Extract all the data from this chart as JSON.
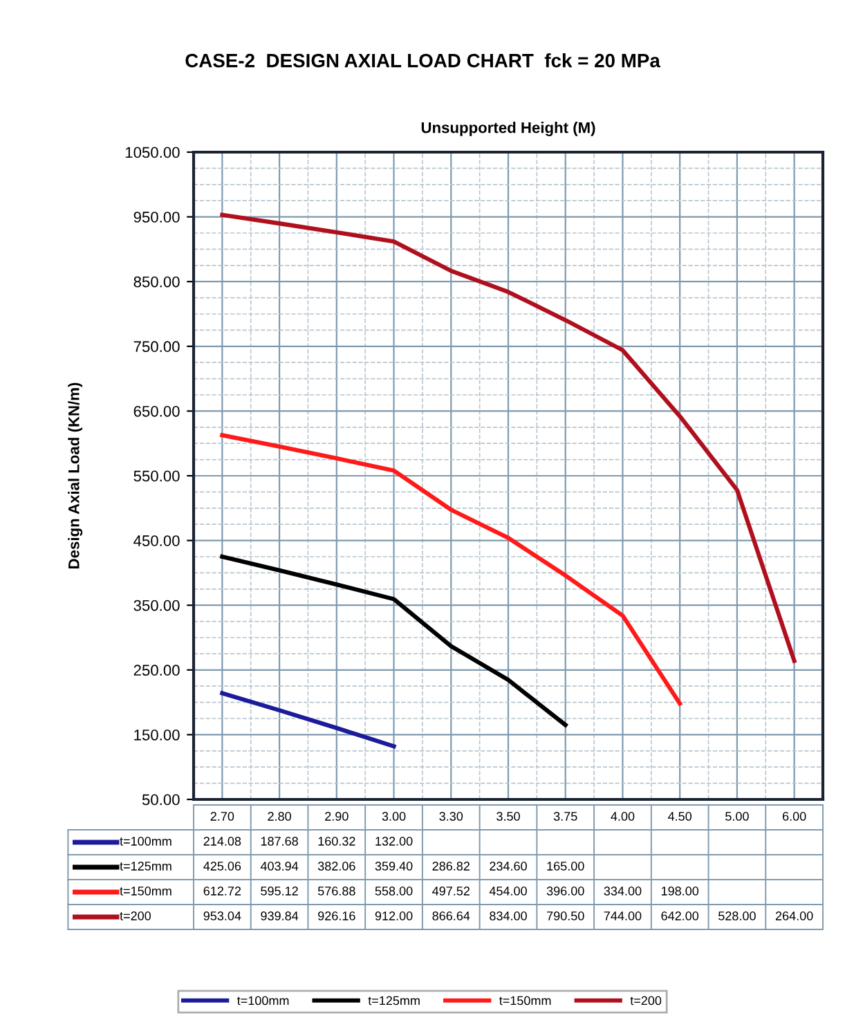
{
  "chart_data": {
    "type": "line",
    "title": "CASE-2  DESIGN AXIAL LOAD CHART  fck = 20 MPa",
    "xlabel": "Unsupported Height (M)",
    "ylabel": "Design Axial Load (KN/m)",
    "categories": [
      "2.70",
      "2.80",
      "2.90",
      "3.00",
      "3.30",
      "3.50",
      "3.75",
      "4.00",
      "4.50",
      "5.00",
      "6.00"
    ],
    "series": [
      {
        "name": "t=100mm",
        "color": "#1c1c9a",
        "values": [
          214.08,
          187.68,
          160.32,
          132.0,
          null,
          null,
          null,
          null,
          null,
          null,
          null
        ],
        "value_labels": [
          "214.08",
          "187.68",
          "160.32",
          "132.00",
          null,
          null,
          null,
          null,
          null,
          null,
          null
        ]
      },
      {
        "name": "t=125mm",
        "color": "#000000",
        "values": [
          425.06,
          403.94,
          382.06,
          359.4,
          286.82,
          234.6,
          165.0,
          null,
          null,
          null,
          null
        ],
        "value_labels": [
          "425.06",
          "403.94",
          "382.06",
          "359.40",
          "286.82",
          "234.60",
          "165.00",
          null,
          null,
          null,
          null
        ]
      },
      {
        "name": "t=150mm",
        "color": "#ff1a1a",
        "values": [
          612.72,
          595.12,
          576.88,
          558.0,
          497.52,
          454.0,
          396.0,
          334.0,
          198.0,
          null,
          null
        ],
        "value_labels": [
          "612.72",
          "595.12",
          "576.88",
          "558.00",
          "497.52",
          "454.00",
          "396.00",
          "334.00",
          "198.00",
          null,
          null
        ]
      },
      {
        "name": "t=200",
        "color": "#b0101e",
        "values": [
          953.04,
          939.84,
          926.16,
          912.0,
          866.64,
          834.0,
          790.5,
          744.0,
          642.0,
          528.0,
          264.0
        ],
        "value_labels": [
          "953.04",
          "939.84",
          "926.16",
          "912.00",
          "866.64",
          "834.00",
          "790.50",
          "744.00",
          "642.00",
          "528.00",
          "264.00"
        ]
      }
    ],
    "ylim": [
      50,
      1050
    ],
    "yticks": [
      {
        "value": 50,
        "label": "50.00"
      },
      {
        "value": 150,
        "label": "150.00"
      },
      {
        "value": 250,
        "label": "250.00"
      },
      {
        "value": 350,
        "label": "350.00"
      },
      {
        "value": 450,
        "label": "450.00"
      },
      {
        "value": 550,
        "label": "550.00"
      },
      {
        "value": 650,
        "label": "650.00"
      },
      {
        "value": 750,
        "label": "750.00"
      },
      {
        "value": 850,
        "label": "850.00"
      },
      {
        "value": 950,
        "label": "950.00"
      },
      {
        "value": 1050,
        "label": "1050.00"
      }
    ],
    "grid": true,
    "legend": "bottom",
    "tick_labels": "y",
    "marker": "none",
    "line_style": "solid"
  }
}
